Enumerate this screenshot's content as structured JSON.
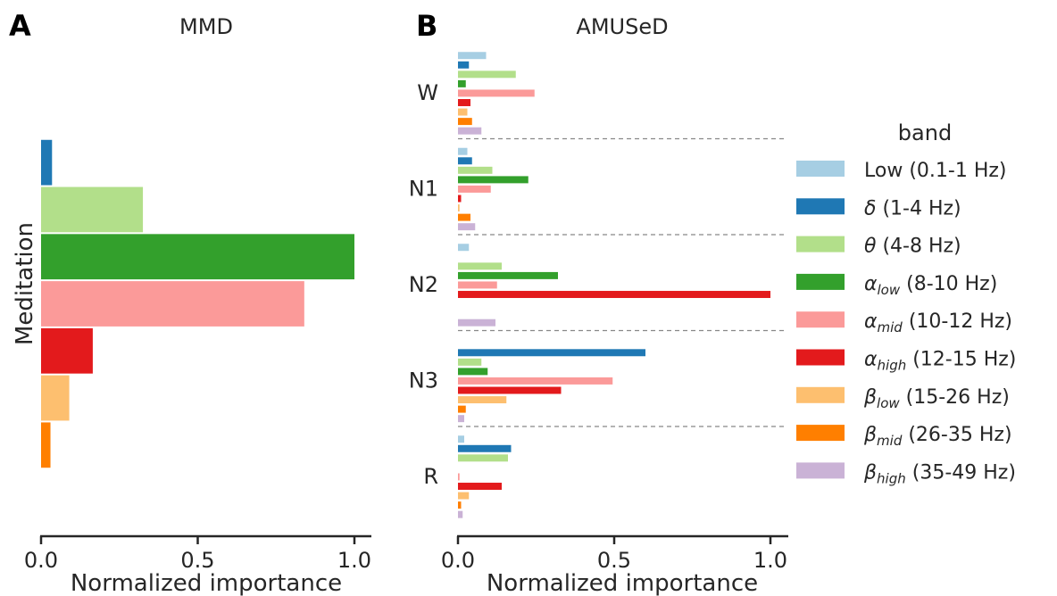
{
  "chart_data": [
    {
      "panel": "A",
      "type": "bar",
      "orientation": "horizontal",
      "title": "MMD",
      "xlabel": "Normalized importance",
      "ylabel": "Meditation",
      "xlim": [
        0,
        1.0
      ],
      "xticks": [
        "0.0",
        "0.5",
        "1.0"
      ],
      "categories": [
        "Meditation"
      ],
      "series": [
        {
          "band": "Low (0.1-1 Hz)",
          "values": [
            0.0
          ]
        },
        {
          "band": "δ (1-4 Hz)",
          "values": [
            0.035
          ]
        },
        {
          "band": "θ (4-8 Hz)",
          "values": [
            0.325
          ]
        },
        {
          "band": "α_low (8-10 Hz)",
          "values": [
            1.0
          ]
        },
        {
          "band": "α_mid (10-12 Hz)",
          "values": [
            0.84
          ]
        },
        {
          "band": "α_high (12-15 Hz)",
          "values": [
            0.165
          ]
        },
        {
          "band": "β_low (15-26 Hz)",
          "values": [
            0.09
          ]
        },
        {
          "band": "β_mid (26-35 Hz)",
          "values": [
            0.03
          ]
        },
        {
          "band": "β_high (35-49 Hz)",
          "values": [
            0.0
          ]
        }
      ]
    },
    {
      "panel": "B",
      "type": "bar",
      "orientation": "horizontal",
      "title": "AMUSeD",
      "xlabel": "Normalized importance",
      "xlim": [
        0,
        1.0
      ],
      "xticks": [
        "0.0",
        "0.5",
        "1.0"
      ],
      "categories": [
        "W",
        "N1",
        "N2",
        "N3",
        "R"
      ],
      "series": [
        {
          "band": "Low (0.1-1 Hz)",
          "values": [
            0.09,
            0.03,
            0.035,
            0.0,
            0.02
          ]
        },
        {
          "band": "δ (1-4 Hz)",
          "values": [
            0.035,
            0.045,
            0.0,
            0.6,
            0.17
          ]
        },
        {
          "band": "θ (4-8 Hz)",
          "values": [
            0.185,
            0.11,
            0.14,
            0.075,
            0.16
          ]
        },
        {
          "band": "α_low (8-10 Hz)",
          "values": [
            0.025,
            0.225,
            0.32,
            0.095,
            0.0
          ]
        },
        {
          "band": "α_mid (10-12 Hz)",
          "values": [
            0.245,
            0.105,
            0.125,
            0.495,
            0.005
          ]
        },
        {
          "band": "α_high (12-15 Hz)",
          "values": [
            0.04,
            0.01,
            1.0,
            0.33,
            0.14
          ]
        },
        {
          "band": "β_low (15-26 Hz)",
          "values": [
            0.03,
            0.005,
            0.0,
            0.155,
            0.035
          ]
        },
        {
          "band": "β_mid (26-35 Hz)",
          "values": [
            0.045,
            0.04,
            0.0,
            0.025,
            0.01
          ]
        },
        {
          "band": "β_high (35-49 Hz)",
          "values": [
            0.075,
            0.055,
            0.12,
            0.02,
            0.015
          ]
        }
      ]
    }
  ],
  "legend": {
    "title": "band",
    "placement": "right",
    "items": [
      {
        "symbol": "",
        "sub": "",
        "rest": "Low (0.1-1 Hz)",
        "color": "#a6cee3"
      },
      {
        "symbol": "δ",
        "sub": "",
        "rest": " (1-4 Hz)",
        "color": "#1f78b4"
      },
      {
        "symbol": "θ",
        "sub": "",
        "rest": " (4-8 Hz)",
        "color": "#b2df8a"
      },
      {
        "symbol": "α",
        "sub": "low",
        "rest": " (8-10 Hz)",
        "color": "#33a02c"
      },
      {
        "symbol": "α",
        "sub": "mid",
        "rest": " (10-12 Hz)",
        "color": "#fb9a99"
      },
      {
        "symbol": "α",
        "sub": "high",
        "rest": " (12-15 Hz)",
        "color": "#e31a1c"
      },
      {
        "symbol": "β",
        "sub": "low",
        "rest": " (15-26 Hz)",
        "color": "#fdbf6f"
      },
      {
        "symbol": "β",
        "sub": "mid",
        "rest": " (26-35 Hz)",
        "color": "#ff7f00"
      },
      {
        "symbol": "β",
        "sub": "high",
        "rest": " (35-49 Hz)",
        "color": "#cab2d6"
      }
    ]
  }
}
